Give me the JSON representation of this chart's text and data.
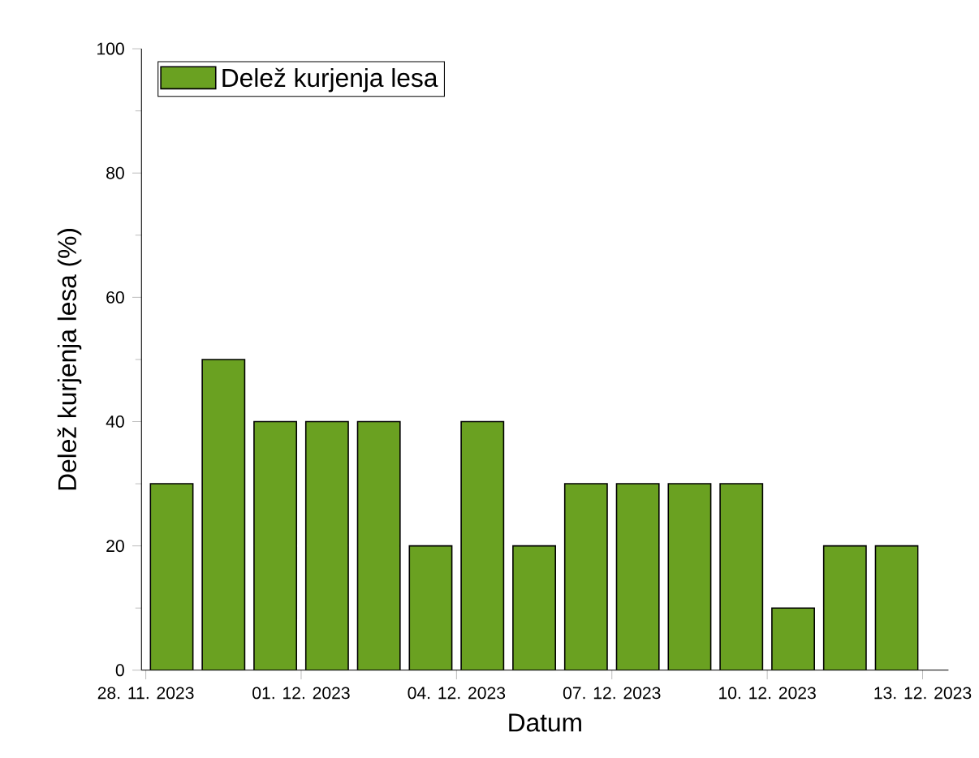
{
  "chart_data": {
    "type": "bar",
    "xlabel": "Datum",
    "ylabel": "Delež kurjenja lesa (%)",
    "x": [
      "2023-11-28T12:00",
      "2023-11-29T12:00",
      "2023-11-30T12:00",
      "2023-12-01T12:00",
      "2023-12-02T12:00",
      "2023-12-03T12:00",
      "2023-12-04T12:00",
      "2023-12-05T12:00",
      "2023-12-06T12:00",
      "2023-12-07T12:00",
      "2023-12-08T12:00",
      "2023-12-09T12:00",
      "2023-12-10T12:00",
      "2023-12-11T12:00",
      "2023-12-12T12:00"
    ],
    "series": [
      {
        "name": "Delež kurjenja lesa",
        "color": "#6aa121",
        "values": [
          30,
          50,
          40,
          40,
          40,
          20,
          40,
          20,
          30,
          30,
          30,
          30,
          10,
          20,
          20
        ]
      }
    ],
    "xlim": [
      "2023-11-27T22:00",
      "2023-12-13T12:00"
    ],
    "xticks": [
      {
        "value": "2023-11-28",
        "label": "28. 11. 2023"
      },
      {
        "value": "2023-12-01",
        "label": "01. 12. 2023"
      },
      {
        "value": "2023-12-04",
        "label": "04. 12. 2023"
      },
      {
        "value": "2023-12-07",
        "label": "07. 12. 2023"
      },
      {
        "value": "2023-12-10",
        "label": "10. 12. 2023"
      },
      {
        "value": "2023-12-13",
        "label": "13. 12. 2023"
      }
    ],
    "ylim": [
      0,
      100
    ],
    "yticks": [
      0,
      20,
      40,
      60,
      80,
      100
    ],
    "grid": false,
    "legend": "top left"
  }
}
